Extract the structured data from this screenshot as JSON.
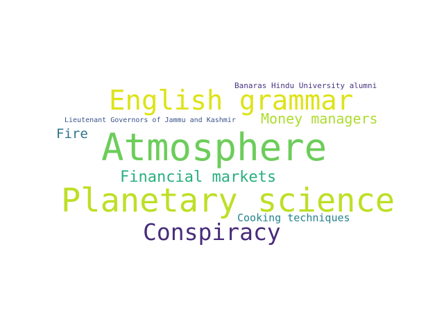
{
  "cloud": {
    "words": [
      {
        "text": "Atmosphere",
        "color": "#6ccd5a"
      },
      {
        "text": "Planetary science",
        "color": "#bddf26"
      },
      {
        "text": "English grammar",
        "color": "#dde318"
      },
      {
        "text": "Conspiracy",
        "color": "#472c7a"
      },
      {
        "text": "Financial markets",
        "color": "#29af7f"
      },
      {
        "text": "Money managers",
        "color": "#addc30"
      },
      {
        "text": "Fire",
        "color": "#2c728e"
      },
      {
        "text": "Cooking techniques",
        "color": "#26828e"
      },
      {
        "text": "Banaras Hindu University alumni",
        "color": "#463480"
      },
      {
        "text": "Lieutenant Governors of Jammu and Kashmir",
        "color": "#3b528b"
      }
    ]
  }
}
